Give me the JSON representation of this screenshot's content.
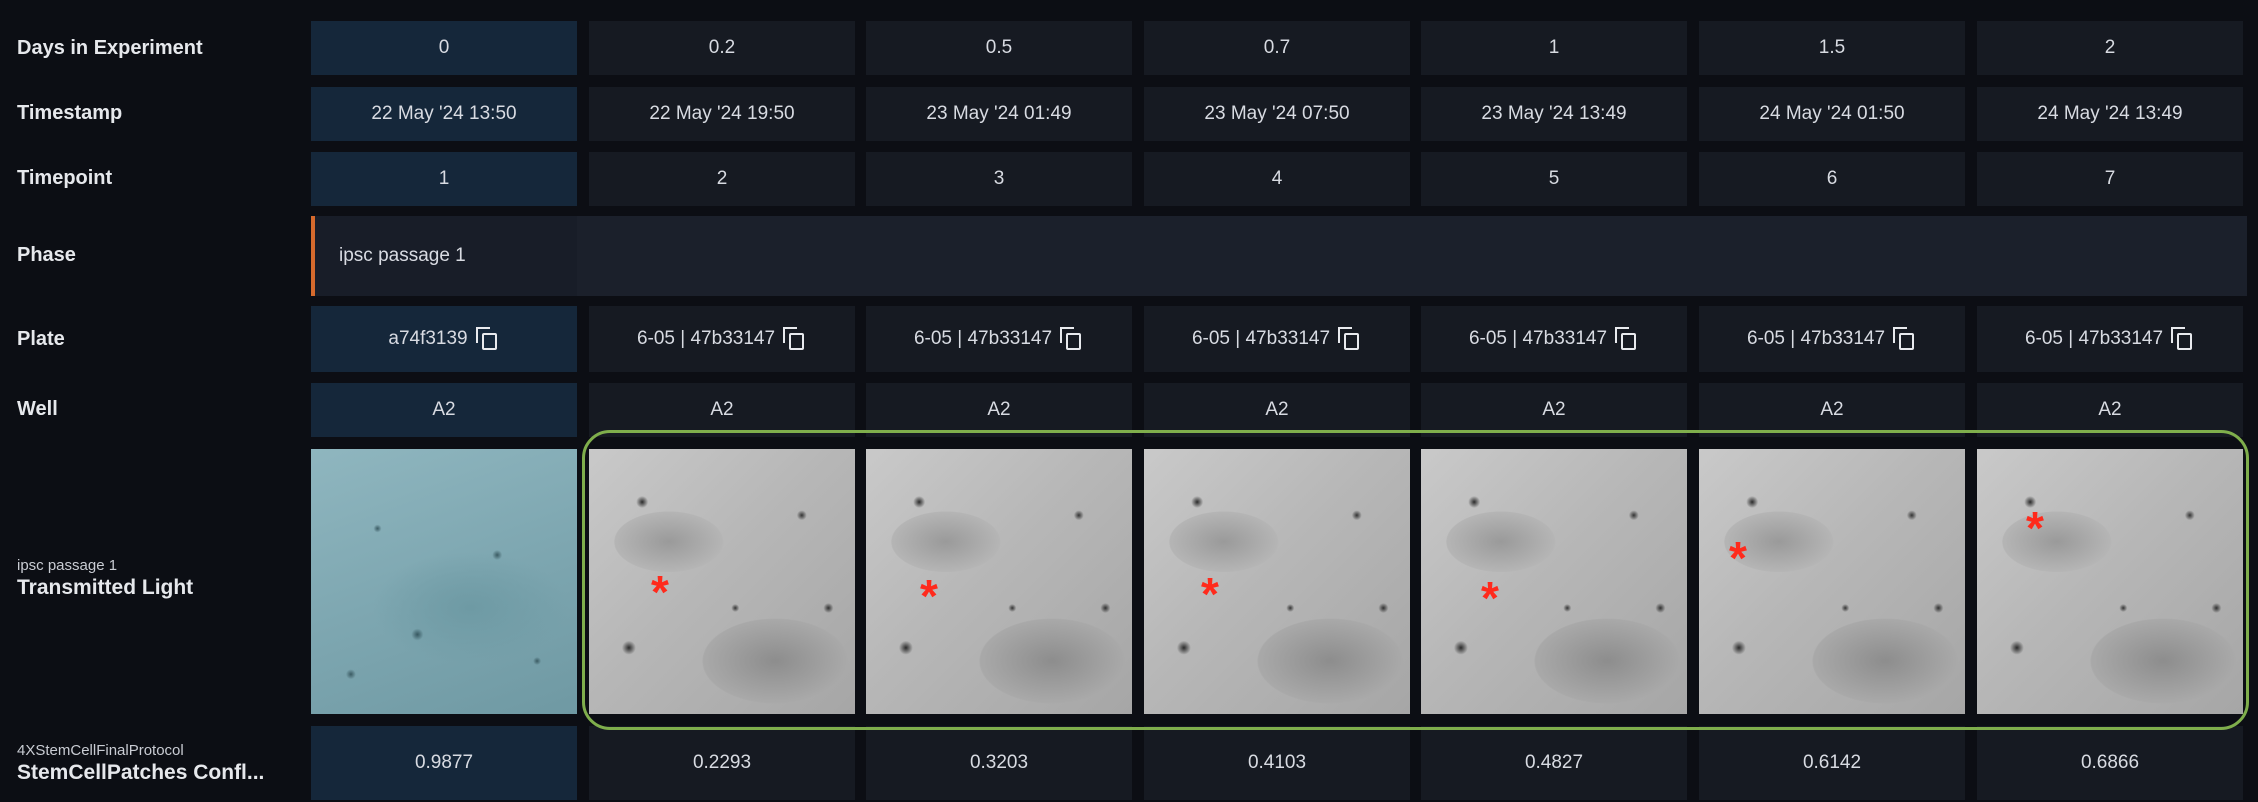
{
  "rows": {
    "days_label": "Days in Experiment",
    "timestamp_label": "Timestamp",
    "timepoint_label": "Timepoint",
    "phase_label": "Phase",
    "plate_label": "Plate",
    "well_label": "Well",
    "image_label_sub": "ipsc passage 1",
    "image_label_main": "Transmitted Light",
    "metric_label_sub": "4XStemCellFinalProtocol",
    "metric_label_main": "StemCellPatches Confl..."
  },
  "phase": {
    "name": "ipsc passage 1",
    "accent": "#d66a2d"
  },
  "columns": [
    {
      "days": "0",
      "timestamp": "22 May '24 13:50",
      "timepoint": "1",
      "plate": "a74f3139",
      "well": "A2",
      "value": "0.9877"
    },
    {
      "days": "0.2",
      "timestamp": "22 May '24 19:50",
      "timepoint": "2",
      "plate": "6-05 | 47b33147",
      "well": "A2",
      "value": "0.2293"
    },
    {
      "days": "0.5",
      "timestamp": "23 May '24 01:49",
      "timepoint": "3",
      "plate": "6-05 | 47b33147",
      "well": "A2",
      "value": "0.3203"
    },
    {
      "days": "0.7",
      "timestamp": "23 May '24 07:50",
      "timepoint": "4",
      "plate": "6-05 | 47b33147",
      "well": "A2",
      "value": "0.4103"
    },
    {
      "days": "1",
      "timestamp": "23 May '24 13:49",
      "timepoint": "5",
      "plate": "6-05 | 47b33147",
      "well": "A2",
      "value": "0.4827"
    },
    {
      "days": "1.5",
      "timestamp": "24 May '24 01:50",
      "timepoint": "6",
      "plate": "6-05 | 47b33147",
      "well": "A2",
      "value": "0.6142"
    },
    {
      "days": "2",
      "timestamp": "24 May '24 13:49",
      "timepoint": "7",
      "plate": "6-05 | 47b33147",
      "well": "A2",
      "value": "0.6866"
    }
  ],
  "icons": {
    "copy": "copy-icon",
    "marker": "asterisk"
  },
  "colors": {
    "highlight": "#7fae4c",
    "marker": "#ff2a1c",
    "first_column": "#15273a"
  }
}
